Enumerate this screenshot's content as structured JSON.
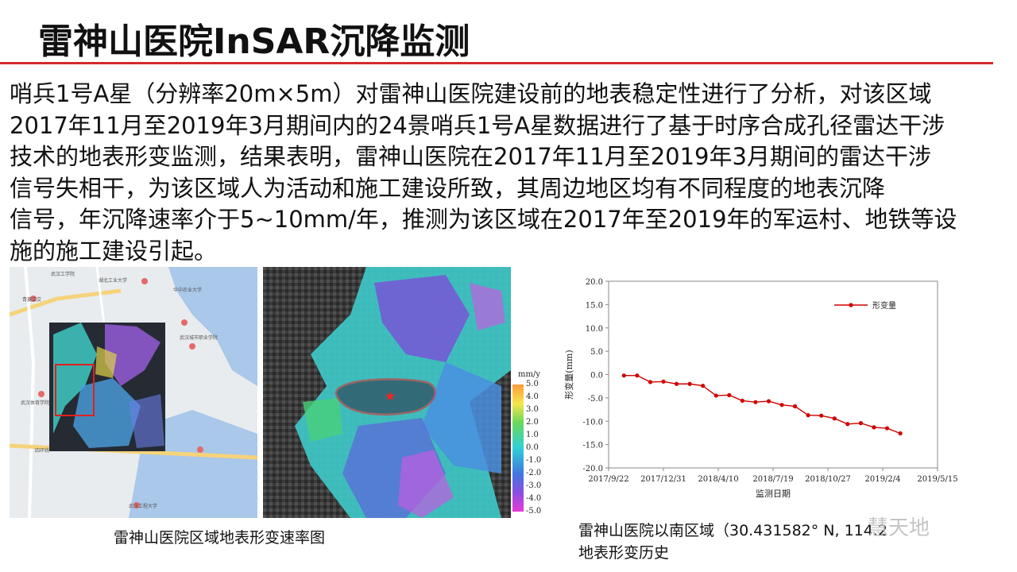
{
  "slide": {
    "title": "雷神山医院InSAR沉降监测",
    "body_lines": [
      "哨兵1号A星（分辨率20m×5m）对雷神山医院建设前的地表稳定性进行了分析，对该区域",
      "2017年11月至2019年3月期间内的24景哨兵1号A星数据进行了基于时序合成孔径雷达干涉",
      "技术的地表形变监测，结果表明，雷神山医院在2017年11月至2019年3月期间的雷达干涉",
      "信号失相干，为该区域人为活动和施工建设所致，其周边地区均有不同程度的地表沉降",
      "信号，年沉降速率介于5~10mm/年，推测为该区域在2017年至2019年的军运村、地铁等设",
      "施的施工建设引起。"
    ],
    "accent_color": "#d42a2a"
  },
  "map_labels": {
    "l1": "武汉工学院",
    "l2": "湖北工业大学",
    "l3": "青菱立交",
    "l4": "华中农业大学",
    "l5": "武汉城市职业学院",
    "l6": "武汉体育学院",
    "l7": "武汉工程大学",
    "l8": "四环线"
  },
  "colorbar": {
    "unit": "mm/y",
    "ticks": [
      "5.0",
      "4.0",
      "3.0",
      "2.0",
      "1.0",
      "0.0",
      "-1.0",
      "-2.0",
      "-3.0",
      "-4.0",
      "-5.0"
    ]
  },
  "captions": {
    "left": "雷神山医院区域地表形变速率图",
    "right_line1": "雷神山医院以南区域（30.431582° N, 114.2",
    "right_line2": "地表形变历史"
  },
  "watermark": {
    "text": "慧天地"
  },
  "chart_data": {
    "type": "line",
    "xlabel": "监测日期",
    "ylabel": "形变量(mm)",
    "ylim": [
      -20,
      20
    ],
    "yticks": [
      "20.0",
      "15.0",
      "10.0",
      "5.0",
      "0.0",
      "-5.0",
      "-10.0",
      "-15.0",
      "-20.0"
    ],
    "xticks": [
      "2017/9/22",
      "2017/12/31",
      "2018/4/10",
      "2018/7/19",
      "2018/10/27",
      "2019/2/4",
      "2019/5/15"
    ],
    "grid": false,
    "legend": "top-right",
    "series": [
      {
        "name": "形变量",
        "color": "#d00000",
        "points": [
          {
            "x": "2017/10/20",
            "y": -0.2
          },
          {
            "x": "2017/11/13",
            "y": -0.2
          },
          {
            "x": "2017/12/7",
            "y": -1.6
          },
          {
            "x": "2017/12/31",
            "y": -1.5
          },
          {
            "x": "2018/1/24",
            "y": -2.0
          },
          {
            "x": "2018/2/17",
            "y": -2.0
          },
          {
            "x": "2018/3/13",
            "y": -2.4
          },
          {
            "x": "2018/4/6",
            "y": -4.5
          },
          {
            "x": "2018/4/30",
            "y": -4.4
          },
          {
            "x": "2018/5/24",
            "y": -5.6
          },
          {
            "x": "2018/6/17",
            "y": -5.9
          },
          {
            "x": "2018/7/11",
            "y": -5.7
          },
          {
            "x": "2018/8/4",
            "y": -6.5
          },
          {
            "x": "2018/8/28",
            "y": -6.8
          },
          {
            "x": "2018/9/21",
            "y": -8.7
          },
          {
            "x": "2018/10/15",
            "y": -8.8
          },
          {
            "x": "2018/11/8",
            "y": -9.4
          },
          {
            "x": "2018/12/2",
            "y": -10.6
          },
          {
            "x": "2018/12/26",
            "y": -10.4
          },
          {
            "x": "2019/1/19",
            "y": -11.3
          },
          {
            "x": "2019/2/12",
            "y": -11.5
          },
          {
            "x": "2019/3/8",
            "y": -12.6
          }
        ]
      }
    ]
  }
}
